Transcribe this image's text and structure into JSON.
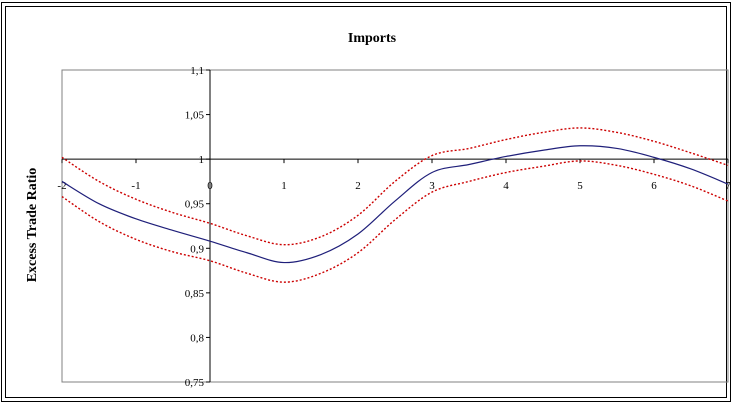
{
  "chart_data": {
    "type": "line",
    "title": "Imports",
    "xlabel": "",
    "ylabel": "Excess Trade Ratio",
    "xlim": [
      -2,
      7
    ],
    "ylim": [
      0.75,
      1.1
    ],
    "x_ticks": [
      -2,
      -1,
      0,
      1,
      2,
      3,
      4,
      5,
      6,
      7
    ],
    "y_ticks": [
      "0,75",
      "0,8",
      "0,85",
      "0,9",
      "0,95",
      "1",
      "1,05",
      "1,1"
    ],
    "y_tick_values": [
      0.75,
      0.8,
      0.85,
      0.9,
      0.95,
      1.0,
      1.05,
      1.1
    ],
    "x_axis_crosses_y": 1.0,
    "y_axis_crosses_x": 0,
    "grid": false,
    "legend": "none",
    "series": [
      {
        "style": "solid",
        "color": "#1f1f7a",
        "x": [
          -2,
          -1.5,
          -1,
          -0.5,
          0,
          0.5,
          1,
          1.5,
          2,
          2.5,
          3,
          3.5,
          4,
          4.5,
          5,
          5.5,
          6,
          6.5,
          7
        ],
        "y": [
          0.975,
          0.95,
          0.933,
          0.92,
          0.908,
          0.895,
          0.884,
          0.893,
          0.916,
          0.953,
          0.985,
          0.994,
          1.003,
          1.01,
          1.015,
          1.012,
          1.002,
          0.989,
          0.972
        ]
      },
      {
        "style": "dotted",
        "color": "#cc0000",
        "x": [
          -2,
          -1.5,
          -1,
          -0.5,
          0,
          0.5,
          1,
          1.5,
          2,
          2.5,
          3,
          3.5,
          4,
          4.5,
          5,
          5.5,
          6,
          6.5,
          7
        ],
        "y": [
          1.002,
          0.975,
          0.955,
          0.94,
          0.928,
          0.914,
          0.904,
          0.913,
          0.937,
          0.975,
          1.004,
          1.012,
          1.022,
          1.03,
          1.035,
          1.03,
          1.02,
          1.007,
          0.993
        ]
      },
      {
        "style": "dotted",
        "color": "#cc0000",
        "x": [
          -2,
          -1.5,
          -1,
          -0.5,
          0,
          0.5,
          1,
          1.5,
          2,
          2.5,
          3,
          3.5,
          4,
          4.5,
          5,
          5.5,
          6,
          6.5,
          7
        ],
        "y": [
          0.958,
          0.93,
          0.91,
          0.896,
          0.886,
          0.872,
          0.862,
          0.872,
          0.895,
          0.932,
          0.963,
          0.975,
          0.985,
          0.992,
          0.998,
          0.993,
          0.983,
          0.97,
          0.953
        ]
      }
    ]
  }
}
